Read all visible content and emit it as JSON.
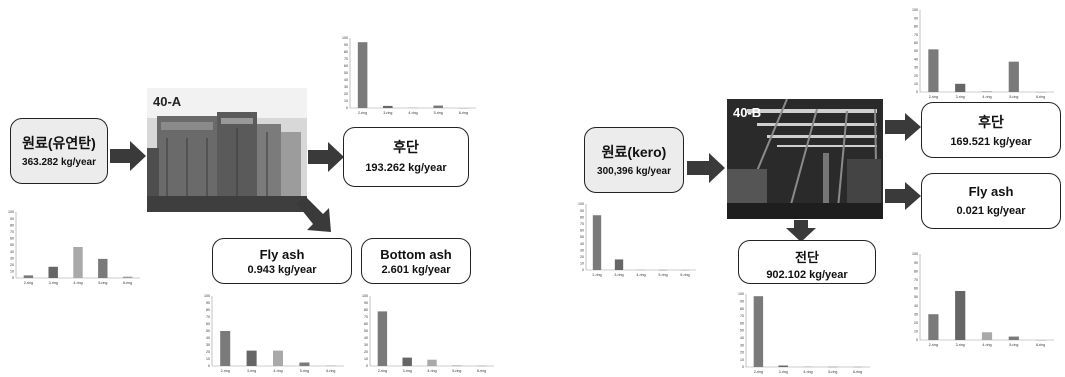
{
  "sources": {
    "a": {
      "title": "원료(유연탄)",
      "value": "363.282 kg/year"
    },
    "b": {
      "title": "원료(kero)",
      "value": "300,396 kg/year"
    }
  },
  "photos": {
    "a": {
      "label": "40-A"
    },
    "b": {
      "label": "40-B"
    }
  },
  "outputs": {
    "a_rear": {
      "title": "후단",
      "value": "193.262 kg/year"
    },
    "a_fly": {
      "title": "Fly ash",
      "value": "0.943 kg/year"
    },
    "a_bottom": {
      "title": "Bottom ash",
      "value": "2.601 kg/year"
    },
    "b_rear": {
      "title": "후단",
      "value": "169.521 kg/year"
    },
    "b_fly": {
      "title": "Fly ash",
      "value": "0.021 kg/year"
    },
    "b_front": {
      "title": "전단",
      "value": "902.102 kg/year"
    }
  },
  "colors": {
    "box_border": "#222222",
    "source_fill": "#ececec",
    "arrow": "#3a3a3a"
  },
  "chart_data": [
    {
      "id": "a_source",
      "type": "bar",
      "categories": [
        "2-ring",
        "3-ring",
        "4-ring",
        "5-ring",
        "6-ring"
      ],
      "values": [
        4,
        17,
        47,
        29,
        2
      ],
      "ylim": [
        0,
        100
      ],
      "yticks": [
        0,
        10,
        20,
        30,
        40,
        50,
        60,
        70,
        80,
        90,
        100
      ]
    },
    {
      "id": "a_rear",
      "type": "bar",
      "categories": [
        "2-ring",
        "3-ring",
        "4-ring",
        "5-ring",
        "6-ring"
      ],
      "values": [
        94,
        3,
        0.5,
        3.5,
        0
      ],
      "ylim": [
        0,
        100
      ],
      "yticks": [
        0,
        10,
        20,
        30,
        40,
        50,
        60,
        70,
        80,
        90,
        100
      ]
    },
    {
      "id": "a_fly",
      "type": "bar",
      "categories": [
        "2-ring",
        "3-ring",
        "4-ring",
        "5-ring",
        "6-ring"
      ],
      "values": [
        50,
        22,
        22,
        5,
        0.5
      ],
      "ylim": [
        0,
        100
      ],
      "yticks": [
        0,
        10,
        20,
        30,
        40,
        50,
        60,
        70,
        80,
        90,
        100
      ]
    },
    {
      "id": "a_bottom",
      "type": "bar",
      "categories": [
        "2-ring",
        "3-ring",
        "4-ring",
        "5-ring",
        "6-ring"
      ],
      "values": [
        78,
        12,
        9,
        0.5,
        0.3
      ],
      "ylim": [
        0,
        100
      ],
      "yticks": [
        0,
        10,
        20,
        30,
        40,
        50,
        60,
        70,
        80,
        90,
        100
      ]
    },
    {
      "id": "b_source",
      "type": "bar",
      "categories": [
        "2-ring",
        "3-ring",
        "4-ring",
        "5-ring",
        "6-ring"
      ],
      "values": [
        83,
        16,
        0.3,
        0.2,
        0.1
      ],
      "ylim": [
        0,
        100
      ],
      "yticks": [
        0,
        10,
        20,
        30,
        40,
        50,
        60,
        70,
        80,
        90,
        100
      ]
    },
    {
      "id": "b_rear",
      "type": "bar",
      "categories": [
        "2-ring",
        "3-ring",
        "4-ring",
        "5-ring",
        "6-ring"
      ],
      "values": [
        52,
        10,
        1,
        37,
        0
      ],
      "ylim": [
        0,
        100
      ],
      "yticks": [
        0,
        10,
        20,
        30,
        40,
        50,
        60,
        70,
        80,
        90,
        100
      ]
    },
    {
      "id": "b_front",
      "type": "bar",
      "categories": [
        "2-ring",
        "3-ring",
        "4-ring",
        "5-ring",
        "6-ring"
      ],
      "values": [
        97,
        2,
        0.5,
        0.3,
        0.2
      ],
      "ylim": [
        0,
        100
      ],
      "yticks": [
        0,
        10,
        20,
        30,
        40,
        50,
        60,
        70,
        80,
        90,
        100
      ]
    },
    {
      "id": "b_fly",
      "type": "bar",
      "categories": [
        "2-ring",
        "3-ring",
        "4-ring",
        "5-ring",
        "6-ring"
      ],
      "values": [
        30,
        57,
        9,
        4,
        0
      ],
      "ylim": [
        0,
        100
      ],
      "yticks": [
        0,
        10,
        20,
        30,
        40,
        50,
        60,
        70,
        80,
        90,
        100
      ]
    }
  ]
}
